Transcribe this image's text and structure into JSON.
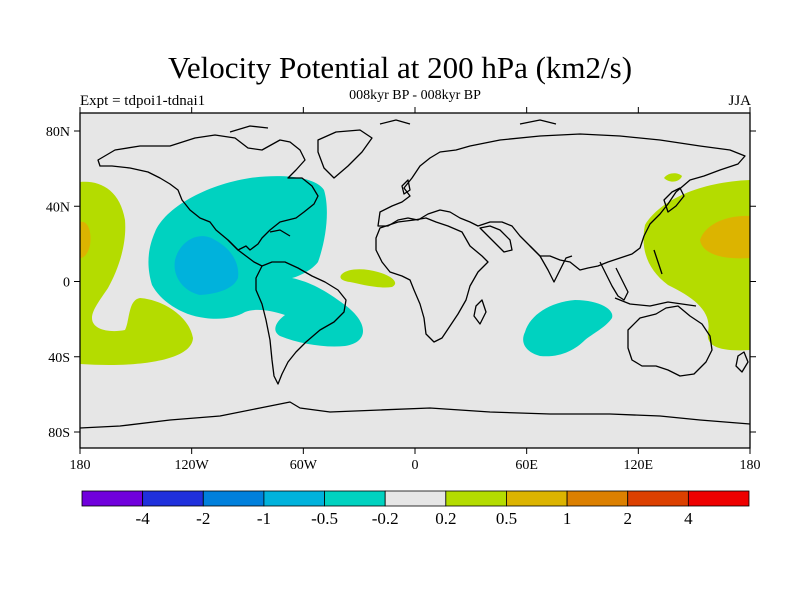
{
  "title": "Velocity Potential at 200 hPa (km2/s)",
  "subtitle": "008kyr BP - 008kyr BP",
  "left_label": "Expt = tdpoi1-tdnai1",
  "right_label": "JJA",
  "axes": {
    "x_ticks": [
      "180",
      "120W",
      "60W",
      "0",
      "60E",
      "120E",
      "180"
    ],
    "y_ticks": [
      "80N",
      "40N",
      "0",
      "40S",
      "80S"
    ]
  },
  "colors": {
    "background_field": "#e6e6e6",
    "neg_light": "#00d2c0",
    "neg_mid": "#00b2dc",
    "pos_light": "#b4dc00",
    "pos_mid": "#dcb400"
  },
  "colorbar": {
    "colors": [
      "#7000dc",
      "#2030dc",
      "#0080dc",
      "#00b2dc",
      "#00d2c0",
      "#e6e6e6",
      "#b4dc00",
      "#dcb400",
      "#dc8000",
      "#dc4000",
      "#ee0000"
    ],
    "labels": [
      "-4",
      "-2",
      "-1",
      "-0.5",
      "-0.2",
      "0.2",
      "0.5",
      "1",
      "2",
      "4"
    ]
  }
}
